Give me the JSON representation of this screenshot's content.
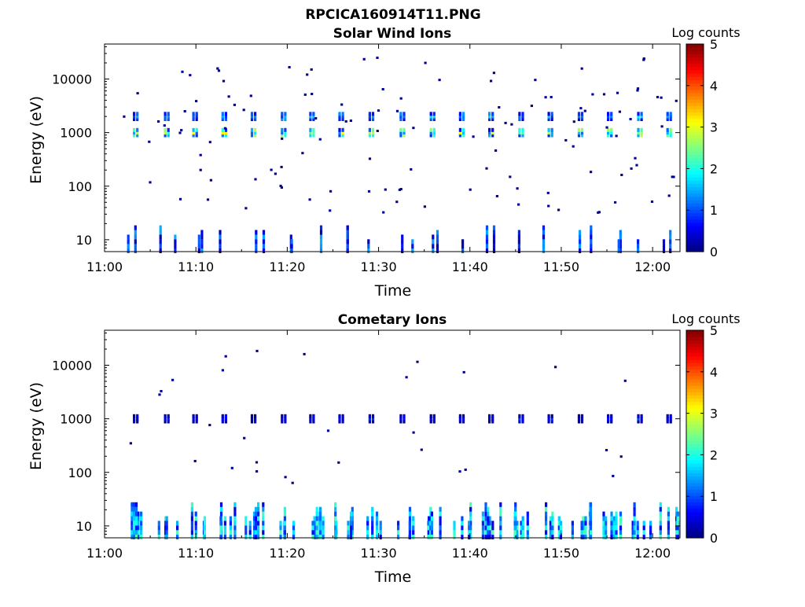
{
  "figure_title": "RPCICA160914T11.PNG",
  "colors": {
    "colormap": "jet",
    "axis": "#000000",
    "background": "#ffffff"
  },
  "chart_data": [
    {
      "type": "heatmap",
      "title": "Solar Wind Ions",
      "xlabel": "Time",
      "ylabel": "Energy (eV)",
      "colorbar_label": "Log counts",
      "y_scale": "log",
      "xlim": [
        "11:00",
        "12:03"
      ],
      "ylim": [
        6,
        45000
      ],
      "clim": [
        0,
        5
      ],
      "x_ticks": [
        "11:00",
        "11:10",
        "11:20",
        "11:30",
        "11:40",
        "11:50",
        "12:00"
      ],
      "y_ticks": [
        "10",
        "100",
        "1000",
        "10000"
      ],
      "colorbar_ticks": [
        "0",
        "1",
        "2",
        "3",
        "4",
        "5"
      ],
      "scan_times_min": [
        3.3,
        6.7,
        9.8,
        13.0,
        16.2,
        19.5,
        22.6,
        25.8,
        29.1,
        32.5,
        35.8,
        39.0,
        42.2,
        45.5,
        48.7,
        52.0,
        55.2,
        58.5,
        61.7
      ],
      "bands": [
        {
          "energy_eV": 1000,
          "log_counts_range": [
            1.0,
            3.2
          ],
          "description": "solar wind proton peak at each scan"
        },
        {
          "energy_eV": 2000,
          "log_counts_range": [
            0.8,
            1.8
          ],
          "description": "alpha particle peak at each scan"
        },
        {
          "energy_eV": [
            6,
            20
          ],
          "log_counts_range": [
            0.2,
            1.5
          ],
          "description": "low-energy counts"
        }
      ],
      "background_noise_log_counts": 0.1
    },
    {
      "type": "heatmap",
      "title": "Cometary Ions",
      "xlabel": "Time",
      "ylabel": "Energy (eV)",
      "colorbar_label": "Log counts",
      "y_scale": "log",
      "xlim": [
        "11:00",
        "12:03"
      ],
      "ylim": [
        6,
        45000
      ],
      "clim": [
        0,
        5
      ],
      "x_ticks": [
        "11:00",
        "11:10",
        "11:20",
        "11:30",
        "11:40",
        "11:50",
        "12:00"
      ],
      "y_ticks": [
        "10",
        "100",
        "1000",
        "10000"
      ],
      "colorbar_ticks": [
        "0",
        "1",
        "2",
        "3",
        "4",
        "5"
      ],
      "scan_times_min": [
        3.3,
        6.7,
        9.8,
        13.0,
        16.2,
        19.5,
        22.6,
        25.8,
        29.1,
        32.5,
        35.8,
        39.0,
        42.2,
        45.5,
        48.7,
        52.0,
        55.2,
        58.5,
        61.7
      ],
      "bands": [
        {
          "energy_eV": 1000,
          "log_counts_range": [
            0.3,
            1.0
          ],
          "description": "weak band at 1000 eV"
        },
        {
          "energy_eV": [
            6,
            30
          ],
          "log_counts_range": [
            0.5,
            2.3
          ],
          "description": "cometary ion population at low energy"
        }
      ],
      "background_noise_log_counts": 0.1
    }
  ]
}
